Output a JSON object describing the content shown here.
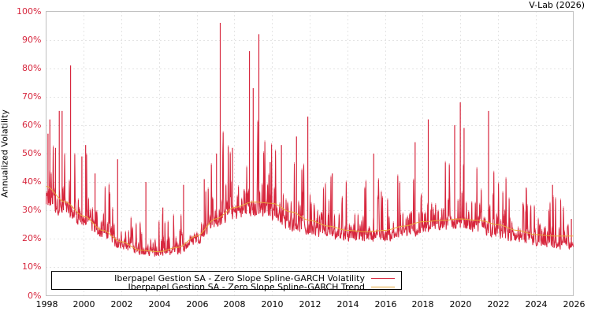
{
  "credit": "V-Lab (2026)",
  "colors": {
    "volatility": "#d7263d",
    "volatility_light": "#ec8a96",
    "trend": "#e8a93a",
    "grid": "#c8c8c8",
    "axis": "#c0c0c0",
    "ytick": "#d7263d"
  },
  "chart_data": {
    "type": "line",
    "title": "",
    "xlabel": "",
    "ylabel": "Annualized Volatility",
    "xlim": [
      1998,
      2026
    ],
    "ylim": [
      0,
      100
    ],
    "x_ticks": [
      "1998",
      "2000",
      "2002",
      "2004",
      "2006",
      "2008",
      "2010",
      "2012",
      "2014",
      "2016",
      "2018",
      "2020",
      "2022",
      "2024",
      "2026"
    ],
    "y_ticks": [
      "0%",
      "10%",
      "20%",
      "30%",
      "40%",
      "50%",
      "60%",
      "70%",
      "80%",
      "90%",
      "100%"
    ],
    "grid": true,
    "legend_position": "lower-left inside",
    "series": [
      {
        "name": "Iberpapel Gestion SA - Zero Slope Spline-GARCH Volatility",
        "color": "#d7263d",
        "baseline_x": [
          1998,
          1999,
          2000,
          2001,
          2002,
          2003,
          2004,
          2005,
          2006,
          2007,
          2008,
          2009,
          2010,
          2011,
          2012,
          2013,
          2014,
          2015,
          2016,
          2017,
          2018,
          2019,
          2020,
          2021,
          2022,
          2023,
          2024,
          2025,
          2026
        ],
        "baseline_y": [
          32,
          29,
          25,
          21,
          17,
          15,
          14,
          15,
          19,
          25,
          28,
          29,
          28,
          24,
          22,
          21,
          20,
          20,
          20,
          21,
          22,
          24,
          24,
          23,
          21,
          19,
          18,
          17,
          17
        ],
        "spikes": [
          {
            "x": 1998.1,
            "y": 57
          },
          {
            "x": 1998.2,
            "y": 62
          },
          {
            "x": 1998.5,
            "y": 52
          },
          {
            "x": 1998.7,
            "y": 65
          },
          {
            "x": 1998.85,
            "y": 65
          },
          {
            "x": 1999.3,
            "y": 81
          },
          {
            "x": 1999.9,
            "y": 49
          },
          {
            "x": 2000.1,
            "y": 53
          },
          {
            "x": 2000.6,
            "y": 43
          },
          {
            "x": 2001.8,
            "y": 48
          },
          {
            "x": 2003.3,
            "y": 40
          },
          {
            "x": 2004.2,
            "y": 31
          },
          {
            "x": 2005.3,
            "y": 39
          },
          {
            "x": 2006.4,
            "y": 41
          },
          {
            "x": 2007.05,
            "y": 50
          },
          {
            "x": 2007.25,
            "y": 96
          },
          {
            "x": 2007.9,
            "y": 52
          },
          {
            "x": 2008.8,
            "y": 86
          },
          {
            "x": 2009.0,
            "y": 73
          },
          {
            "x": 2009.3,
            "y": 92
          },
          {
            "x": 2009.9,
            "y": 47
          },
          {
            "x": 2010.5,
            "y": 53
          },
          {
            "x": 2011.3,
            "y": 56
          },
          {
            "x": 2011.9,
            "y": 63
          },
          {
            "x": 2013.2,
            "y": 43
          },
          {
            "x": 2015.4,
            "y": 50
          },
          {
            "x": 2017.6,
            "y": 54
          },
          {
            "x": 2018.3,
            "y": 62
          },
          {
            "x": 2019.7,
            "y": 60
          },
          {
            "x": 2020.0,
            "y": 68
          },
          {
            "x": 2020.2,
            "y": 59
          },
          {
            "x": 2021.5,
            "y": 65
          },
          {
            "x": 2023.5,
            "y": 38
          },
          {
            "x": 2024.9,
            "y": 39
          },
          {
            "x": 2025.9,
            "y": 27
          }
        ]
      },
      {
        "name": "Iberpapel Gestion SA - Zero Slope Spline-GARCH Trend",
        "color": "#e8a93a",
        "x": [
          1998,
          1999,
          2000,
          2001,
          2002,
          2003,
          2004,
          2005,
          2006,
          2007,
          2008,
          2009,
          2010,
          2011,
          2012,
          2013,
          2014,
          2015,
          2016,
          2017,
          2018,
          2019,
          2020,
          2021,
          2022,
          2023,
          2024,
          2025,
          2026
        ],
        "y": [
          38.5,
          33,
          28,
          23,
          19,
          16,
          15.5,
          17,
          21,
          27,
          31,
          33,
          32.5,
          29.5,
          26.5,
          24.5,
          23,
          22.5,
          23,
          24.5,
          26,
          26.5,
          27,
          26.5,
          25,
          23,
          21.5,
          21,
          21
        ]
      }
    ]
  },
  "legend": {
    "items": [
      {
        "label": "Iberpapel Gestion SA - Zero Slope Spline-GARCH Volatility"
      },
      {
        "label": "Iberpapel Gestion SA - Zero Slope Spline-GARCH Trend"
      }
    ]
  }
}
